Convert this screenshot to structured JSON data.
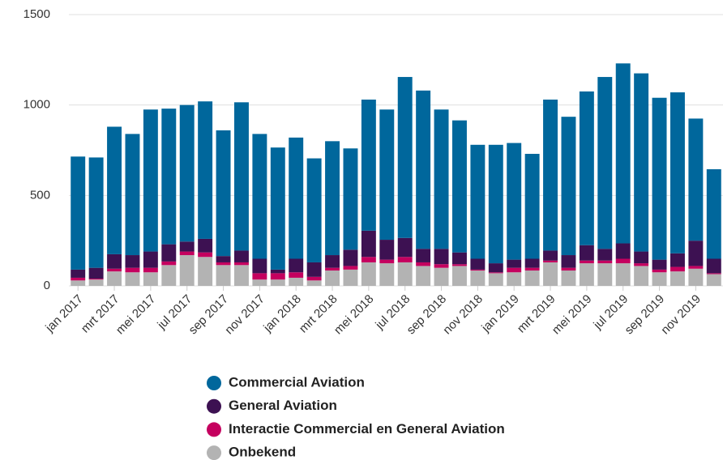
{
  "chart_data": {
    "type": "stacked_bar",
    "categories": [
      "jan 2017",
      null,
      "mrt 2017",
      null,
      "mei 2017",
      null,
      "jul 2017",
      null,
      "sep 2017",
      null,
      "nov 2017",
      null,
      "jan 2018",
      null,
      "mrt 2018",
      null,
      "mei 2018",
      null,
      "jul 2018",
      null,
      "sep 2018",
      null,
      "nov 2018",
      null,
      "jan 2019",
      null,
      "mrt 2019",
      null,
      "mei 2019",
      null,
      "jul 2019",
      null,
      "sep 2019",
      null,
      "nov 2019",
      null
    ],
    "series": [
      {
        "name": "Onbekend",
        "color": "#b3b3b3",
        "values": [
          30,
          35,
          80,
          75,
          75,
          115,
          170,
          160,
          115,
          115,
          35,
          35,
          45,
          30,
          85,
          90,
          130,
          125,
          130,
          110,
          100,
          110,
          85,
          70,
          75,
          85,
          130,
          85,
          125,
          125,
          125,
          110,
          75,
          80,
          95,
          65
        ]
      },
      {
        "name": "Interactie Commercial en General Aviation",
        "color": "#c5005f",
        "values": [
          15,
          5,
          15,
          25,
          25,
          20,
          20,
          25,
          15,
          15,
          35,
          35,
          30,
          20,
          15,
          20,
          30,
          20,
          30,
          20,
          20,
          10,
          5,
          5,
          25,
          15,
          10,
          15,
          15,
          15,
          25,
          15,
          15,
          25,
          15,
          5
        ]
      },
      {
        "name": "General Aviation",
        "color": "#3d1152",
        "values": [
          45,
          60,
          80,
          70,
          90,
          95,
          55,
          75,
          35,
          65,
          80,
          20,
          75,
          80,
          70,
          90,
          145,
          110,
          105,
          75,
          85,
          65,
          60,
          50,
          45,
          50,
          55,
          70,
          85,
          65,
          85,
          65,
          55,
          75,
          140,
          80
        ]
      },
      {
        "name": "Commercial Aviation",
        "color": "#00679c",
        "values": [
          625,
          610,
          705,
          670,
          785,
          750,
          755,
          760,
          695,
          820,
          690,
          675,
          670,
          575,
          630,
          560,
          725,
          720,
          890,
          875,
          770,
          730,
          630,
          655,
          645,
          580,
          835,
          765,
          850,
          950,
          995,
          985,
          895,
          890,
          675,
          495
        ]
      }
    ],
    "legend_order": [
      3,
      2,
      1,
      0
    ],
    "ylim": [
      0,
      1500
    ],
    "yticks": [
      0,
      500,
      1000,
      1500
    ],
    "grid": true
  }
}
